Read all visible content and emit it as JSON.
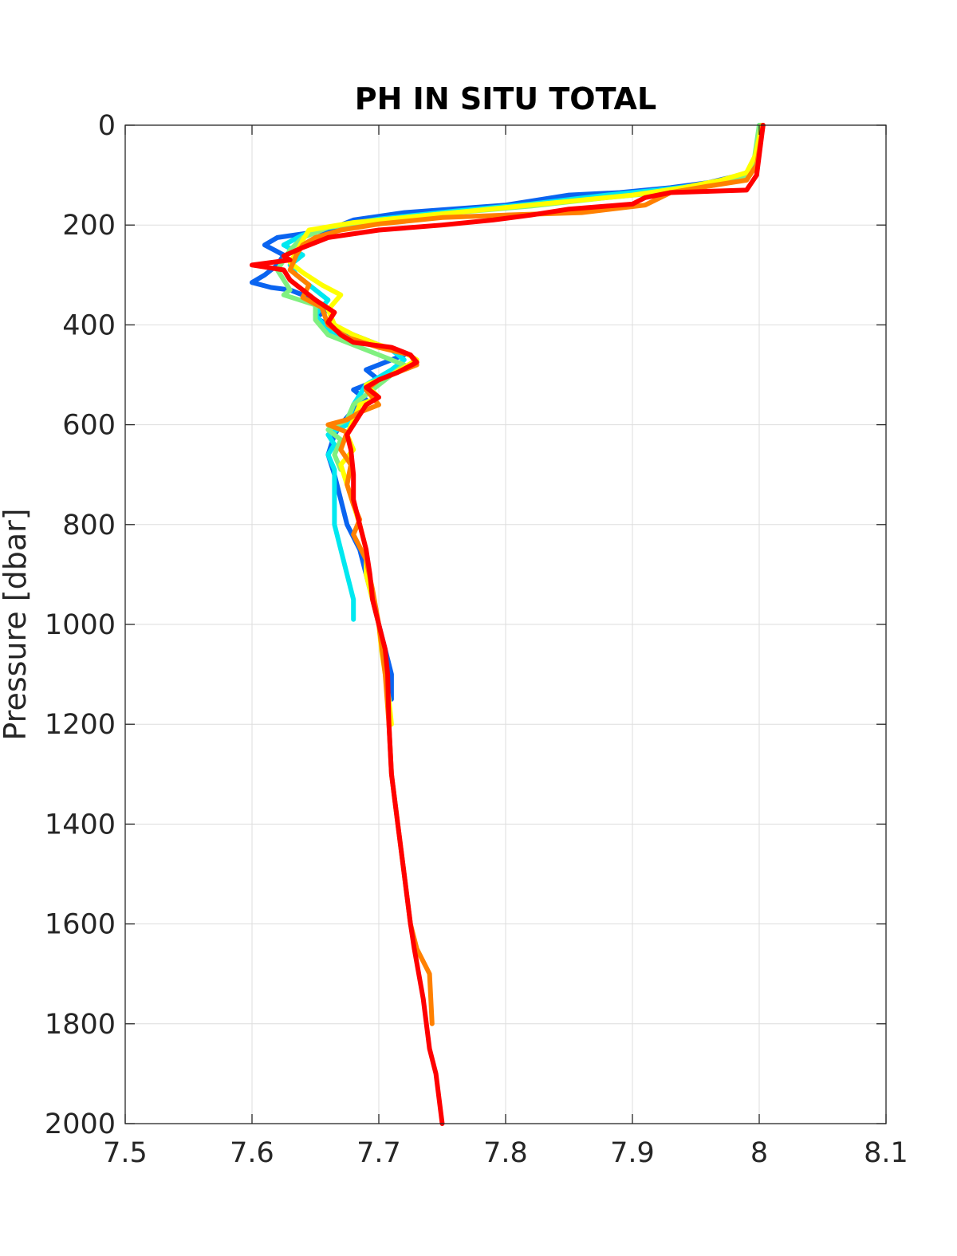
{
  "chart_data": {
    "type": "line",
    "title": "PH IN SITU TOTAL",
    "xlabel": "",
    "ylabel": "Pressure [dbar]",
    "xlim": [
      7.5,
      8.1
    ],
    "ylim": [
      0,
      2000
    ],
    "y_reversed": true,
    "grid": true,
    "xticks": [
      "7.5",
      "7.6",
      "7.7",
      "7.8",
      "7.9",
      "8",
      "8.1"
    ],
    "yticks": [
      "0",
      "200",
      "400",
      "600",
      "800",
      "1000",
      "1200",
      "1400",
      "1600",
      "1800",
      "2000"
    ],
    "series": [
      {
        "color": "#0a64f0",
        "points": [
          [
            8.001,
            0
          ],
          [
            7.998,
            50
          ],
          [
            7.995,
            90
          ],
          [
            7.985,
            100
          ],
          [
            7.96,
            115
          ],
          [
            7.93,
            125
          ],
          [
            7.89,
            135
          ],
          [
            7.85,
            140
          ],
          [
            7.8,
            160
          ],
          [
            7.72,
            175
          ],
          [
            7.68,
            190
          ],
          [
            7.66,
            210
          ],
          [
            7.62,
            225
          ],
          [
            7.61,
            240
          ],
          [
            7.625,
            260
          ],
          [
            7.62,
            280
          ],
          [
            7.61,
            300
          ],
          [
            7.6,
            315
          ],
          [
            7.615,
            325
          ],
          [
            7.63,
            330
          ],
          [
            7.65,
            350
          ],
          [
            7.66,
            370
          ],
          [
            7.65,
            385
          ],
          [
            7.66,
            400
          ],
          [
            7.68,
            420
          ],
          [
            7.7,
            440
          ],
          [
            7.72,
            460
          ],
          [
            7.71,
            470
          ],
          [
            7.69,
            490
          ],
          [
            7.7,
            510
          ],
          [
            7.68,
            530
          ],
          [
            7.69,
            550
          ],
          [
            7.68,
            570
          ],
          [
            7.67,
            600
          ],
          [
            7.665,
            620
          ],
          [
            7.66,
            660
          ],
          [
            7.665,
            700
          ],
          [
            7.67,
            750
          ],
          [
            7.675,
            800
          ],
          [
            7.685,
            850
          ],
          [
            7.69,
            900
          ],
          [
            7.695,
            950
          ],
          [
            7.7,
            1000
          ],
          [
            7.705,
            1050
          ],
          [
            7.71,
            1100
          ],
          [
            7.71,
            1150
          ]
        ]
      },
      {
        "color": "#00e8f0",
        "points": [
          [
            8.0,
            0
          ],
          [
            7.998,
            60
          ],
          [
            7.99,
            100
          ],
          [
            7.96,
            118
          ],
          [
            7.92,
            130
          ],
          [
            7.88,
            140
          ],
          [
            7.82,
            158
          ],
          [
            7.76,
            172
          ],
          [
            7.7,
            188
          ],
          [
            7.66,
            205
          ],
          [
            7.64,
            220
          ],
          [
            7.625,
            240
          ],
          [
            7.64,
            260
          ],
          [
            7.63,
            280
          ],
          [
            7.635,
            300
          ],
          [
            7.645,
            320
          ],
          [
            7.66,
            350
          ],
          [
            7.65,
            380
          ],
          [
            7.66,
            410
          ],
          [
            7.68,
            430
          ],
          [
            7.71,
            450
          ],
          [
            7.72,
            470
          ],
          [
            7.71,
            490
          ],
          [
            7.69,
            520
          ],
          [
            7.68,
            560
          ],
          [
            7.675,
            600
          ],
          [
            7.66,
            620
          ],
          [
            7.665,
            640
          ],
          [
            7.66,
            660
          ],
          [
            7.665,
            690
          ],
          [
            7.665,
            720
          ],
          [
            7.665,
            760
          ],
          [
            7.665,
            800
          ],
          [
            7.67,
            850
          ],
          [
            7.675,
            900
          ],
          [
            7.68,
            950
          ],
          [
            7.68,
            990
          ]
        ]
      },
      {
        "color": "#80f080",
        "points": [
          [
            8.0,
            0
          ],
          [
            7.996,
            70
          ],
          [
            7.99,
            100
          ],
          [
            7.965,
            120
          ],
          [
            7.93,
            133
          ],
          [
            7.88,
            145
          ],
          [
            7.82,
            162
          ],
          [
            7.76,
            175
          ],
          [
            7.7,
            190
          ],
          [
            7.66,
            205
          ],
          [
            7.64,
            225
          ],
          [
            7.63,
            250
          ],
          [
            7.625,
            270
          ],
          [
            7.62,
            290
          ],
          [
            7.625,
            310
          ],
          [
            7.63,
            330
          ],
          [
            7.625,
            340
          ],
          [
            7.65,
            360
          ],
          [
            7.65,
            390
          ],
          [
            7.66,
            420
          ],
          [
            7.68,
            440
          ],
          [
            7.7,
            460
          ],
          [
            7.72,
            480
          ],
          [
            7.71,
            500
          ],
          [
            7.7,
            520
          ],
          [
            7.68,
            560
          ],
          [
            7.675,
            590
          ],
          [
            7.66,
            610
          ],
          [
            7.67,
            630
          ],
          [
            7.665,
            660
          ],
          [
            7.67,
            690
          ]
        ]
      },
      {
        "color": "#ffff00",
        "points": [
          [
            8.002,
            0
          ],
          [
            7.997,
            60
          ],
          [
            7.99,
            95
          ],
          [
            7.97,
            110
          ],
          [
            7.94,
            125
          ],
          [
            7.9,
            140
          ],
          [
            7.84,
            155
          ],
          [
            7.78,
            170
          ],
          [
            7.72,
            185
          ],
          [
            7.68,
            195
          ],
          [
            7.645,
            210
          ],
          [
            7.64,
            230
          ],
          [
            7.635,
            255
          ],
          [
            7.63,
            275
          ],
          [
            7.64,
            295
          ],
          [
            7.655,
            320
          ],
          [
            7.67,
            340
          ],
          [
            7.66,
            370
          ],
          [
            7.665,
            400
          ],
          [
            7.68,
            420
          ],
          [
            7.7,
            440
          ],
          [
            7.72,
            455
          ],
          [
            7.73,
            470
          ],
          [
            7.71,
            500
          ],
          [
            7.69,
            520
          ],
          [
            7.7,
            545
          ],
          [
            7.685,
            560
          ],
          [
            7.68,
            590
          ],
          [
            7.675,
            620
          ],
          [
            7.68,
            650
          ],
          [
            7.67,
            680
          ],
          [
            7.675,
            720
          ],
          [
            7.68,
            760
          ],
          [
            7.685,
            800
          ],
          [
            7.69,
            850
          ],
          [
            7.69,
            900
          ],
          [
            7.695,
            950
          ],
          [
            7.7,
            1000
          ],
          [
            7.702,
            1050
          ],
          [
            7.705,
            1100
          ],
          [
            7.708,
            1150
          ],
          [
            7.71,
            1200
          ]
        ]
      },
      {
        "color": "#ff8000",
        "points": [
          [
            8.003,
            0
          ],
          [
            8.0,
            50
          ],
          [
            7.998,
            80
          ],
          [
            7.99,
            110
          ],
          [
            7.96,
            122
          ],
          [
            7.93,
            135
          ],
          [
            7.91,
            160
          ],
          [
            7.86,
            175
          ],
          [
            7.8,
            180
          ],
          [
            7.75,
            185
          ],
          [
            7.7,
            198
          ],
          [
            7.67,
            210
          ],
          [
            7.65,
            225
          ],
          [
            7.64,
            240
          ],
          [
            7.635,
            260
          ],
          [
            7.63,
            290
          ],
          [
            7.645,
            320
          ],
          [
            7.64,
            345
          ],
          [
            7.655,
            365
          ],
          [
            7.66,
            400
          ],
          [
            7.675,
            425
          ],
          [
            7.7,
            445
          ],
          [
            7.725,
            460
          ],
          [
            7.73,
            480
          ],
          [
            7.72,
            490
          ],
          [
            7.7,
            510
          ],
          [
            7.69,
            530
          ],
          [
            7.7,
            560
          ],
          [
            7.685,
            575
          ],
          [
            7.675,
            590
          ],
          [
            7.66,
            600
          ],
          [
            7.675,
            615
          ],
          [
            7.67,
            650
          ],
          [
            7.678,
            680
          ],
          [
            7.675,
            720
          ],
          [
            7.68,
            760
          ],
          [
            7.685,
            790
          ],
          [
            7.68,
            820
          ],
          [
            7.69,
            870
          ],
          [
            7.695,
            930
          ],
          [
            7.7,
            1000
          ],
          [
            7.705,
            1100
          ],
          [
            7.708,
            1200
          ],
          [
            7.71,
            1300
          ],
          [
            7.715,
            1400
          ],
          [
            7.72,
            1500
          ],
          [
            7.725,
            1600
          ],
          [
            7.73,
            1650
          ],
          [
            7.74,
            1700
          ],
          [
            7.742,
            1800
          ]
        ]
      },
      {
        "color": "#ff0000",
        "points": [
          [
            8.003,
            0
          ],
          [
            8.0,
            60
          ],
          [
            7.998,
            100
          ],
          [
            7.99,
            130
          ],
          [
            7.93,
            135
          ],
          [
            7.91,
            145
          ],
          [
            7.9,
            158
          ],
          [
            7.85,
            168
          ],
          [
            7.82,
            180
          ],
          [
            7.79,
            190
          ],
          [
            7.75,
            200
          ],
          [
            7.7,
            210
          ],
          [
            7.66,
            225
          ],
          [
            7.64,
            245
          ],
          [
            7.625,
            262
          ],
          [
            7.63,
            270
          ],
          [
            7.6,
            280
          ],
          [
            7.625,
            290
          ],
          [
            7.63,
            310
          ],
          [
            7.64,
            330
          ],
          [
            7.65,
            350
          ],
          [
            7.665,
            375
          ],
          [
            7.66,
            395
          ],
          [
            7.67,
            420
          ],
          [
            7.68,
            435
          ],
          [
            7.71,
            445
          ],
          [
            7.725,
            460
          ],
          [
            7.73,
            475
          ],
          [
            7.715,
            495
          ],
          [
            7.7,
            510
          ],
          [
            7.69,
            525
          ],
          [
            7.7,
            545
          ],
          [
            7.69,
            560
          ],
          [
            7.685,
            580
          ],
          [
            7.68,
            600
          ],
          [
            7.675,
            620
          ],
          [
            7.678,
            650
          ],
          [
            7.68,
            700
          ],
          [
            7.68,
            750
          ],
          [
            7.685,
            800
          ],
          [
            7.69,
            850
          ],
          [
            7.693,
            900
          ],
          [
            7.695,
            950
          ],
          [
            7.7,
            1000
          ],
          [
            7.705,
            1050
          ],
          [
            7.707,
            1100
          ],
          [
            7.708,
            1200
          ],
          [
            7.71,
            1300
          ],
          [
            7.715,
            1400
          ],
          [
            7.72,
            1500
          ],
          [
            7.725,
            1600
          ],
          [
            7.728,
            1650
          ],
          [
            7.735,
            1750
          ],
          [
            7.74,
            1850
          ],
          [
            7.745,
            1900
          ],
          [
            7.75,
            2000
          ]
        ]
      }
    ]
  }
}
